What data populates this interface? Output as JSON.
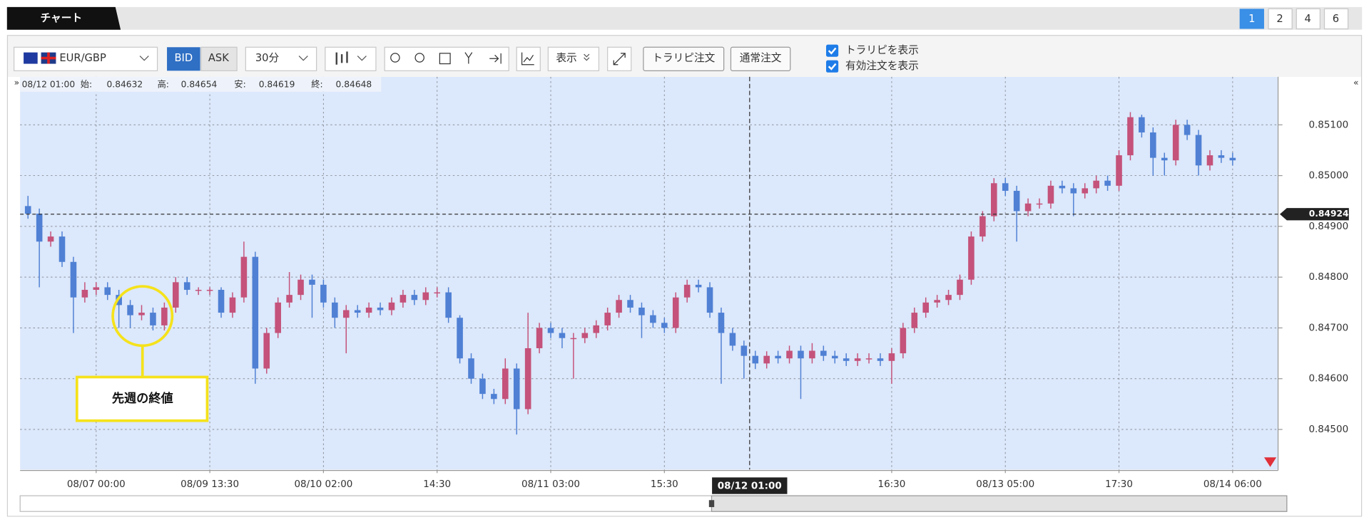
{
  "tabs": {
    "title": "チャート",
    "pages": [
      "1",
      "2",
      "4",
      "6"
    ]
  },
  "toolbar": {
    "symbol": "EUR/GBP",
    "bid": "BID",
    "ask": "ASK",
    "interval": "30分",
    "display": "表示",
    "trap_order": "トラリピ注文",
    "normal_order": "通常注文",
    "show_trap": "トラリピを表示",
    "show_orders": "有効注文を表示"
  },
  "info": {
    "time": "08/12 01:00",
    "open_label": "始:",
    "open": "0.84632",
    "high_label": "高:",
    "high": "0.84654",
    "low_label": "安:",
    "low": "0.84619",
    "close_label": "終:",
    "close": "0.84648"
  },
  "annotation": {
    "text": "先週の終値"
  },
  "chart_data": {
    "type": "candlestick",
    "up_color": "#c4527a",
    "down_color": "#4f80d4",
    "grid": true,
    "categories": [
      null,
      null,
      null,
      null,
      null,
      null,
      "08/07 00:00",
      null,
      null,
      null,
      null,
      null,
      null,
      null,
      null,
      null,
      "08/09 13:30",
      null,
      null,
      null,
      null,
      null,
      null,
      null,
      null,
      null,
      "08/10 02:00",
      null,
      null,
      null,
      null,
      null,
      null,
      null,
      null,
      null,
      "14:30",
      null,
      null,
      null,
      null,
      null,
      null,
      null,
      null,
      null,
      "08/11 03:00",
      null,
      null,
      null,
      null,
      null,
      null,
      null,
      null,
      null,
      "15:30",
      null,
      null,
      null,
      null,
      null,
      null,
      null,
      null,
      null,
      null,
      null,
      null,
      null,
      null,
      null,
      null,
      null,
      null,
      null,
      "16:30",
      null,
      null,
      null,
      null,
      null,
      null,
      null,
      null,
      null,
      "08/13 05:00",
      null,
      null,
      null,
      null,
      null,
      null,
      null,
      null,
      null,
      "17:30",
      null,
      null,
      null,
      null,
      null,
      null,
      null,
      null,
      null,
      "08/14 06:00"
    ],
    "open": [
      0.8494,
      0.84925,
      0.8487,
      0.8488,
      0.8483,
      0.8476,
      0.84775,
      0.8478,
      0.84765,
      0.84745,
      0.84725,
      0.8473,
      0.84705,
      0.8474,
      0.8479,
      0.84775,
      0.84775,
      0.84775,
      0.8473,
      0.8476,
      0.8484,
      0.8462,
      0.8469,
      0.8475,
      0.84765,
      0.84795,
      0.84785,
      0.8475,
      0.8472,
      0.84735,
      0.8473,
      0.8474,
      0.84735,
      0.8475,
      0.84765,
      0.84755,
      0.8477,
      0.8477,
      0.8472,
      0.8464,
      0.846,
      0.8457,
      0.8456,
      0.8462,
      0.8454,
      0.8466,
      0.847,
      0.8469,
      0.8468,
      0.8468,
      0.8469,
      0.84705,
      0.8473,
      0.84755,
      0.8474,
      0.84725,
      0.8471,
      0.847,
      0.8476,
      0.84785,
      0.8478,
      0.8473,
      0.8469,
      0.84665,
      0.84645,
      0.8463,
      0.84645,
      0.8464,
      0.84655,
      0.8464,
      0.84655,
      0.84645,
      0.8464,
      0.84635,
      0.8464,
      0.8464,
      0.84635,
      0.8465,
      0.847,
      0.8473,
      0.8475,
      0.84755,
      0.84765,
      0.84795,
      0.8488,
      0.8492,
      0.84985,
      0.8497,
      0.8493,
      0.84945,
      0.84945,
      0.8498,
      0.84975,
      0.84965,
      0.84975,
      0.8499,
      0.8498,
      0.8504,
      0.85115,
      0.85085,
      0.85035,
      0.8503,
      0.851,
      0.8508,
      0.8502,
      0.8504,
      0.85035
    ],
    "high": [
      0.8496,
      0.84935,
      0.8489,
      0.8489,
      0.8484,
      0.8479,
      0.8479,
      0.8479,
      0.84775,
      0.84755,
      0.84745,
      0.8474,
      0.8475,
      0.848,
      0.848,
      0.8478,
      0.8478,
      0.8478,
      0.8477,
      0.8487,
      0.8485,
      0.847,
      0.8476,
      0.8481,
      0.84805,
      0.84805,
      0.84795,
      0.8476,
      0.84745,
      0.84745,
      0.8475,
      0.8475,
      0.8476,
      0.84775,
      0.84775,
      0.8478,
      0.8478,
      0.8478,
      0.84725,
      0.8465,
      0.8461,
      0.8458,
      0.8464,
      0.8463,
      0.8473,
      0.8471,
      0.8471,
      0.847,
      0.8469,
      0.847,
      0.84715,
      0.8474,
      0.84765,
      0.84765,
      0.8475,
      0.84735,
      0.8472,
      0.8477,
      0.84795,
      0.84795,
      0.8479,
      0.8474,
      0.847,
      0.84675,
      0.84655,
      0.84654,
      0.84655,
      0.84665,
      0.84665,
      0.8467,
      0.84665,
      0.84655,
      0.8465,
      0.8465,
      0.8465,
      0.8465,
      0.8466,
      0.8471,
      0.8474,
      0.8476,
      0.84765,
      0.84775,
      0.84805,
      0.8489,
      0.8493,
      0.84995,
      0.84995,
      0.8498,
      0.84955,
      0.84955,
      0.8499,
      0.8499,
      0.84985,
      0.84985,
      0.85,
      0.85,
      0.8505,
      0.85125,
      0.8512,
      0.85095,
      0.85045,
      0.8511,
      0.8511,
      0.8509,
      0.8505,
      0.8505,
      0.85045
    ],
    "low": [
      0.84915,
      0.8478,
      0.8486,
      0.8482,
      0.8469,
      0.8475,
      0.84765,
      0.84755,
      0.847,
      0.847,
      0.84715,
      0.84695,
      0.84695,
      0.8473,
      0.84765,
      0.84765,
      0.84765,
      0.8472,
      0.8472,
      0.8475,
      0.8459,
      0.8461,
      0.8468,
      0.8474,
      0.84755,
      0.8472,
      0.8474,
      0.847,
      0.8465,
      0.8472,
      0.8472,
      0.84725,
      0.84725,
      0.8474,
      0.84745,
      0.84745,
      0.8476,
      0.8471,
      0.8463,
      0.8459,
      0.8456,
      0.8455,
      0.8455,
      0.8449,
      0.8453,
      0.8465,
      0.8468,
      0.8466,
      0.846,
      0.8467,
      0.8468,
      0.84695,
      0.8472,
      0.8473,
      0.8468,
      0.847,
      0.8469,
      0.8469,
      0.8475,
      0.8477,
      0.8472,
      0.8459,
      0.84655,
      0.846,
      0.84619,
      0.8462,
      0.8463,
      0.8463,
      0.8456,
      0.8463,
      0.84635,
      0.8463,
      0.84625,
      0.84625,
      0.8463,
      0.84625,
      0.8459,
      0.8464,
      0.8469,
      0.8472,
      0.8474,
      0.84745,
      0.84755,
      0.84785,
      0.8487,
      0.8491,
      0.8496,
      0.8487,
      0.8492,
      0.84935,
      0.84935,
      0.84965,
      0.8492,
      0.84955,
      0.84965,
      0.8497,
      0.8497,
      0.8503,
      0.85075,
      0.85,
      0.85,
      0.8502,
      0.8507,
      0.85,
      0.8501,
      0.85025,
      0.8502
    ],
    "close": [
      0.84925,
      0.8487,
      0.8488,
      0.8483,
      0.8476,
      0.84775,
      0.8478,
      0.84765,
      0.84745,
      0.84725,
      0.8473,
      0.84705,
      0.8474,
      0.8479,
      0.84775,
      0.84775,
      0.84775,
      0.8473,
      0.8476,
      0.8484,
      0.8462,
      0.8469,
      0.8475,
      0.84765,
      0.84795,
      0.84785,
      0.8475,
      0.8472,
      0.84735,
      0.8473,
      0.8474,
      0.84735,
      0.8475,
      0.84765,
      0.84755,
      0.8477,
      0.8477,
      0.8472,
      0.8464,
      0.846,
      0.8457,
      0.8456,
      0.8462,
      0.8454,
      0.8466,
      0.847,
      0.8469,
      0.8468,
      0.8468,
      0.8469,
      0.84705,
      0.8473,
      0.84755,
      0.8474,
      0.84725,
      0.8471,
      0.847,
      0.8476,
      0.84785,
      0.8478,
      0.8473,
      0.8469,
      0.84665,
      0.84645,
      0.8463,
      0.84645,
      0.8464,
      0.84655,
      0.8464,
      0.84655,
      0.84645,
      0.8464,
      0.84635,
      0.8464,
      0.8464,
      0.84635,
      0.8465,
      0.847,
      0.8473,
      0.8475,
      0.84755,
      0.84765,
      0.84795,
      0.8488,
      0.8492,
      0.84985,
      0.8497,
      0.8493,
      0.84945,
      0.84945,
      0.8498,
      0.84975,
      0.84965,
      0.84975,
      0.8499,
      0.8498,
      0.8504,
      0.85115,
      0.85085,
      0.85035,
      0.8503,
      0.851,
      0.8508,
      0.8502,
      0.8504,
      0.85035,
      0.8503
    ],
    "ylim": [
      0.84421,
      0.85191
    ],
    "yticks": [
      {
        "value": 0.845,
        "label": "0.84500"
      },
      {
        "value": 0.846,
        "label": "0.84600"
      },
      {
        "value": 0.847,
        "label": "0.84700"
      },
      {
        "value": 0.848,
        "label": "0.84800"
      },
      {
        "value": 0.849,
        "label": "0.84900"
      },
      {
        "value": 0.85,
        "label": "0.85000"
      },
      {
        "value": 0.851,
        "label": "0.85100"
      }
    ],
    "current_price": 0.84924,
    "crosshair_label": "08/12 01:00"
  }
}
